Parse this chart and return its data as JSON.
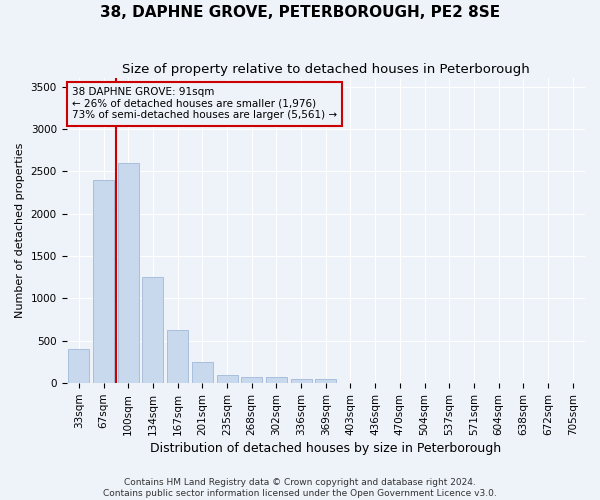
{
  "title": "38, DAPHNE GROVE, PETERBOROUGH, PE2 8SE",
  "subtitle": "Size of property relative to detached houses in Peterborough",
  "xlabel": "Distribution of detached houses by size in Peterborough",
  "ylabel": "Number of detached properties",
  "categories": [
    "33sqm",
    "67sqm",
    "100sqm",
    "134sqm",
    "167sqm",
    "201sqm",
    "235sqm",
    "268sqm",
    "302sqm",
    "336sqm",
    "369sqm",
    "403sqm",
    "436sqm",
    "470sqm",
    "504sqm",
    "537sqm",
    "571sqm",
    "604sqm",
    "638sqm",
    "672sqm",
    "705sqm"
  ],
  "values": [
    400,
    2400,
    2600,
    1250,
    625,
    250,
    100,
    75,
    75,
    50,
    50,
    0,
    0,
    0,
    0,
    0,
    0,
    0,
    0,
    0,
    0
  ],
  "bar_color": "#c8d9ee",
  "bar_edge_color": "#a0b8d8",
  "vline_index": 2,
  "vline_color": "#cc0000",
  "ylim": [
    0,
    3600
  ],
  "yticks": [
    0,
    500,
    1000,
    1500,
    2000,
    2500,
    3000,
    3500
  ],
  "annotation_text": "38 DAPHNE GROVE: 91sqm\n← 26% of detached houses are smaller (1,976)\n73% of semi-detached houses are larger (5,561) →",
  "footer": "Contains HM Land Registry data © Crown copyright and database right 2024.\nContains public sector information licensed under the Open Government Licence v3.0.",
  "background_color": "#eef2f9",
  "grid_color": "#ffffff",
  "title_fontsize": 11,
  "subtitle_fontsize": 9.5,
  "xlabel_fontsize": 9,
  "ylabel_fontsize": 8,
  "tick_fontsize": 7.5,
  "annotation_fontsize": 7.5,
  "footer_fontsize": 6.5
}
